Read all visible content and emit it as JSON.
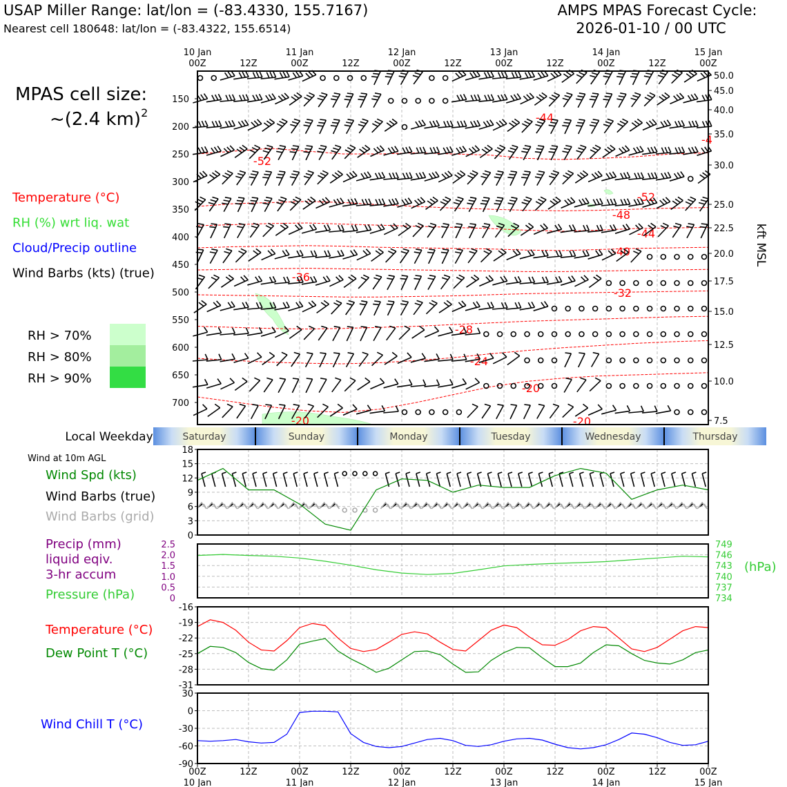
{
  "header": {
    "title_left": "USAP Miller Range: lat/lon = (-83.4330, 155.7167)",
    "subtitle_left": "Nearest cell 180648: lat/lon = (-83.4322, 155.6514)",
    "title_right_1": "AMPS MPAS Forecast Cycle:",
    "title_right_2": "2026-01-10 / 00 UTC"
  },
  "time_axis": {
    "top_labels": [
      {
        "top": "10 Jan",
        "bottom": "00Z"
      },
      {
        "top": "",
        "bottom": "12Z"
      },
      {
        "top": "11 Jan",
        "bottom": "00Z"
      },
      {
        "top": "",
        "bottom": "12Z"
      },
      {
        "top": "12 Jan",
        "bottom": "00Z"
      },
      {
        "top": "",
        "bottom": "12Z"
      },
      {
        "top": "13 Jan",
        "bottom": "00Z"
      },
      {
        "top": "",
        "bottom": "12Z"
      },
      {
        "top": "14 Jan",
        "bottom": "00Z"
      },
      {
        "top": "",
        "bottom": "12Z"
      },
      {
        "top": "15 Jan",
        "bottom": "00Z"
      }
    ],
    "bottom_labels": [
      {
        "top": "00Z",
        "bottom": "10 Jan"
      },
      {
        "top": "12Z",
        "bottom": ""
      },
      {
        "top": "00Z",
        "bottom": "11 Jan"
      },
      {
        "top": "12Z",
        "bottom": ""
      },
      {
        "top": "00Z",
        "bottom": "12 Jan"
      },
      {
        "top": "12Z",
        "bottom": ""
      },
      {
        "top": "00Z",
        "bottom": "13 Jan"
      },
      {
        "top": "12Z",
        "bottom": ""
      },
      {
        "top": "00Z",
        "bottom": "14 Jan"
      },
      {
        "top": "12Z",
        "bottom": ""
      },
      {
        "top": "00Z",
        "bottom": "15 Jan"
      }
    ]
  },
  "left_legend": {
    "cell_size_line1": "MPAS cell size:",
    "cell_size_line2": "~(2.4 km)",
    "cell_size_sup": "2",
    "items": [
      {
        "text": "Temperature (°C)",
        "color": "#ff0000"
      },
      {
        "text": "RH (%) wrt liq. wat",
        "color": "#33dd33"
      },
      {
        "text": "Cloud/Precip outline",
        "color": "#0000ff"
      },
      {
        "text": "Wind Barbs (kts) (true)",
        "color": "#000000"
      }
    ],
    "rh_levels": [
      {
        "text": "RH > 70%",
        "color": "#ccffcc"
      },
      {
        "text": "RH > 80%",
        "color": "#a3ee9e"
      },
      {
        "text": "RH > 90%",
        "color": "#33dd44"
      }
    ]
  },
  "weekday": {
    "label": "Local Weekday",
    "days": [
      "Saturday",
      "Sunday",
      "Monday",
      "Tuesday",
      "Wednesday",
      "Thursday"
    ]
  },
  "surface_legend": {
    "wind_label": "Wind at 10m AGL",
    "wind_spd": "Wind Spd (kts)",
    "wind_barbs_true": "Wind Barbs (true)",
    "wind_barbs_grid": "Wind Barbs (grid)",
    "precip_1": "Precip (mm)",
    "precip_2": "liquid eqiv.",
    "precip_3": "3-hr accum",
    "pressure": "Pressure (hPa)",
    "pressure_unit": "(hPa)",
    "temperature": "Temperature (°C)",
    "dewpoint": "Dew Point T (°C)",
    "windchill": "Wind Chill T (°C)"
  },
  "chart_data": [
    {
      "name": "upper_air",
      "type": "time-height cross section",
      "ylabel": "kft MSL",
      "y_pressure_ticks": [
        "150",
        "200",
        "250",
        "300",
        "350",
        "400",
        "450",
        "500",
        "550",
        "600",
        "650",
        "700"
      ],
      "y_height_ticks": [
        "50.0",
        "45.0",
        "40.0",
        "35.0",
        "30.0",
        "25.0",
        "22.5",
        "20.0",
        "17.5",
        "15.0",
        "12.5",
        "10.0",
        "7.5"
      ],
      "ylim_hpa": [
        740,
        100
      ],
      "temperature_labels": [
        "-44",
        "-4",
        "-52",
        "-52",
        "-48",
        "-44",
        "-40",
        "-36",
        "-32",
        "-28",
        "-24",
        "-20",
        "-20",
        "-20"
      ],
      "temperature_contours": [
        {
          "label": "-52",
          "hpa": [
            250,
            245,
            240,
            245,
            250,
            250,
            248,
            250,
            252,
            258,
            260,
            258,
            255,
            250,
            248
          ]
        },
        {
          "label": "-48",
          "hpa": [
            345,
            340,
            338,
            336,
            338,
            342,
            345,
            348,
            350,
            352,
            353,
            352,
            350,
            348,
            347
          ]
        },
        {
          "label": "-44",
          "hpa": [
            380,
            378,
            376,
            375,
            377,
            379,
            381,
            383,
            385,
            388,
            390,
            388,
            385,
            384,
            383
          ]
        },
        {
          "label": "-40",
          "hpa": [
            420,
            418,
            417,
            416,
            417,
            419,
            420,
            421,
            422,
            424,
            425,
            423,
            421,
            420,
            419
          ]
        },
        {
          "label": "-36",
          "hpa": [
            460,
            459,
            458,
            457,
            458,
            459,
            460,
            461,
            462,
            463,
            463,
            462,
            461,
            460,
            459
          ]
        },
        {
          "label": "-32",
          "hpa": [
            505,
            506,
            507,
            508,
            509,
            509,
            508,
            507,
            505,
            503,
            502,
            501,
            500,
            499,
            498
          ]
        },
        {
          "label": "-28",
          "hpa": [
            562,
            564,
            566,
            567,
            566,
            564,
            562,
            559,
            556,
            553,
            551,
            549,
            547,
            545,
            544
          ]
        },
        {
          "label": "-24",
          "hpa": [
            620,
            624,
            627,
            629,
            630,
            628,
            624,
            619,
            612,
            606,
            601,
            597,
            593,
            590,
            588
          ]
        },
        {
          "label": "-20",
          "hpa": [
            690,
            699,
            708,
            715,
            718,
            712,
            700,
            686,
            672,
            662,
            656,
            652,
            650,
            648,
            646
          ]
        }
      ],
      "note_time_axis": "x values are hours from 2026-01-10 00Z, 0 to 120 h"
    },
    {
      "name": "wind_10m",
      "type": "line",
      "ylabel": "Wind Spd (kts)",
      "ylim": [
        0,
        18
      ],
      "yticks": [
        "18",
        "15",
        "12",
        "9",
        "6",
        "3",
        "0"
      ],
      "x_hours": [
        0,
        6,
        12,
        18,
        24,
        30,
        36,
        42,
        48,
        54,
        60,
        66,
        72,
        78,
        84,
        90,
        96,
        102,
        108,
        114,
        120
      ],
      "series": [
        {
          "name": "Wind Spd (kts)",
          "color": "#008800",
          "values": [
            11.5,
            14,
            9.5,
            9.5,
            6.5,
            2.3,
            1.0,
            9.5,
            11.8,
            11.5,
            9.0,
            10.5,
            10.0,
            10.0,
            12.5,
            14,
            13,
            7.5,
            9.5,
            10.5,
            9.5
          ]
        }
      ]
    },
    {
      "name": "precip_pressure",
      "type": "line",
      "y_left_ticks": [
        "2.5",
        "2.0",
        "1.5",
        "1.0",
        "0.5",
        "0"
      ],
      "y_right_ticks": [
        "749",
        "746",
        "743",
        "740",
        "737",
        "734"
      ],
      "ylim_precip": [
        0,
        2.5
      ],
      "ylim_pressure": [
        734,
        749
      ],
      "x_hours": [
        0,
        6,
        12,
        18,
        24,
        30,
        36,
        42,
        48,
        54,
        60,
        66,
        72,
        78,
        84,
        90,
        96,
        102,
        108,
        114,
        120
      ],
      "series": [
        {
          "name": "Pressure (hPa)",
          "color": "#33cc33",
          "values": [
            745.8,
            746.1,
            745.8,
            745.6,
            745.1,
            744.2,
            743.1,
            741.8,
            740.9,
            740.5,
            740.8,
            741.8,
            742.9,
            743.3,
            743.6,
            743.8,
            744.1,
            744.6,
            745.1,
            745.6,
            745.4
          ]
        }
      ]
    },
    {
      "name": "temperature",
      "type": "line",
      "ylim": [
        -31,
        -16
      ],
      "yticks": [
        "-16",
        "-19",
        "-22",
        "-25",
        "-28",
        "-31"
      ],
      "x_hours": [
        0,
        3,
        6,
        9,
        12,
        15,
        18,
        21,
        24,
        27,
        30,
        33,
        36,
        39,
        42,
        45,
        48,
        51,
        54,
        57,
        60,
        63,
        66,
        69,
        72,
        75,
        78,
        81,
        84,
        87,
        90,
        93,
        96,
        99,
        102,
        105,
        108,
        111,
        114,
        117,
        120
      ],
      "series": [
        {
          "name": "Temperature (°C)",
          "color": "#ff0000",
          "values": [
            -19.8,
            -18.5,
            -19.0,
            -20.5,
            -22.8,
            -24.3,
            -24.5,
            -22.5,
            -20.0,
            -19.2,
            -19.6,
            -22.0,
            -24.0,
            -24.6,
            -24.2,
            -22.8,
            -21.3,
            -20.8,
            -21.2,
            -22.8,
            -24.2,
            -24.5,
            -22.5,
            -20.5,
            -19.5,
            -20.0,
            -21.8,
            -23.3,
            -23.4,
            -22.3,
            -20.6,
            -19.8,
            -20.0,
            -22.0,
            -24.1,
            -24.6,
            -23.8,
            -22.2,
            -20.6,
            -19.8,
            -20.0
          ]
        },
        {
          "name": "Dew Point T (°C)",
          "color": "#008800",
          "values": [
            -25.0,
            -23.6,
            -23.8,
            -24.8,
            -26.7,
            -27.9,
            -28.2,
            -26.2,
            -23.2,
            -22.6,
            -22.1,
            -24.5,
            -26.0,
            -27.2,
            -28.6,
            -27.8,
            -26.2,
            -24.6,
            -24.5,
            -25.2,
            -27.0,
            -28.6,
            -28.5,
            -26.3,
            -24.8,
            -23.8,
            -23.9,
            -25.8,
            -27.5,
            -27.5,
            -26.8,
            -24.8,
            -23.3,
            -23.5,
            -25.0,
            -26.3,
            -26.8,
            -27.0,
            -26.2,
            -24.8,
            -24.3
          ]
        }
      ]
    },
    {
      "name": "wind_chill",
      "type": "line",
      "ylim": [
        -90,
        30
      ],
      "yticks": [
        "30",
        "0",
        "-30",
        "-60",
        "-90"
      ],
      "x_hours": [
        0,
        3,
        6,
        9,
        12,
        15,
        18,
        21,
        24,
        27,
        30,
        33,
        36,
        39,
        42,
        45,
        48,
        51,
        54,
        57,
        60,
        63,
        66,
        69,
        72,
        75,
        78,
        81,
        84,
        87,
        90,
        93,
        96,
        99,
        102,
        105,
        108,
        111,
        114,
        117,
        120
      ],
      "series": [
        {
          "name": "Wind Chill T (°C)",
          "color": "#0000ff",
          "values": [
            -51,
            -52,
            -51,
            -49,
            -53,
            -55,
            -54,
            -40,
            -3,
            -1,
            -1,
            -2,
            -39,
            -54,
            -61,
            -63,
            -61,
            -55,
            -49,
            -47,
            -51,
            -59,
            -61,
            -58,
            -52,
            -48,
            -47,
            -50,
            -57,
            -63,
            -65,
            -63,
            -58,
            -49,
            -38,
            -40,
            -46,
            -54,
            -59,
            -58,
            -52
          ]
        }
      ]
    }
  ]
}
